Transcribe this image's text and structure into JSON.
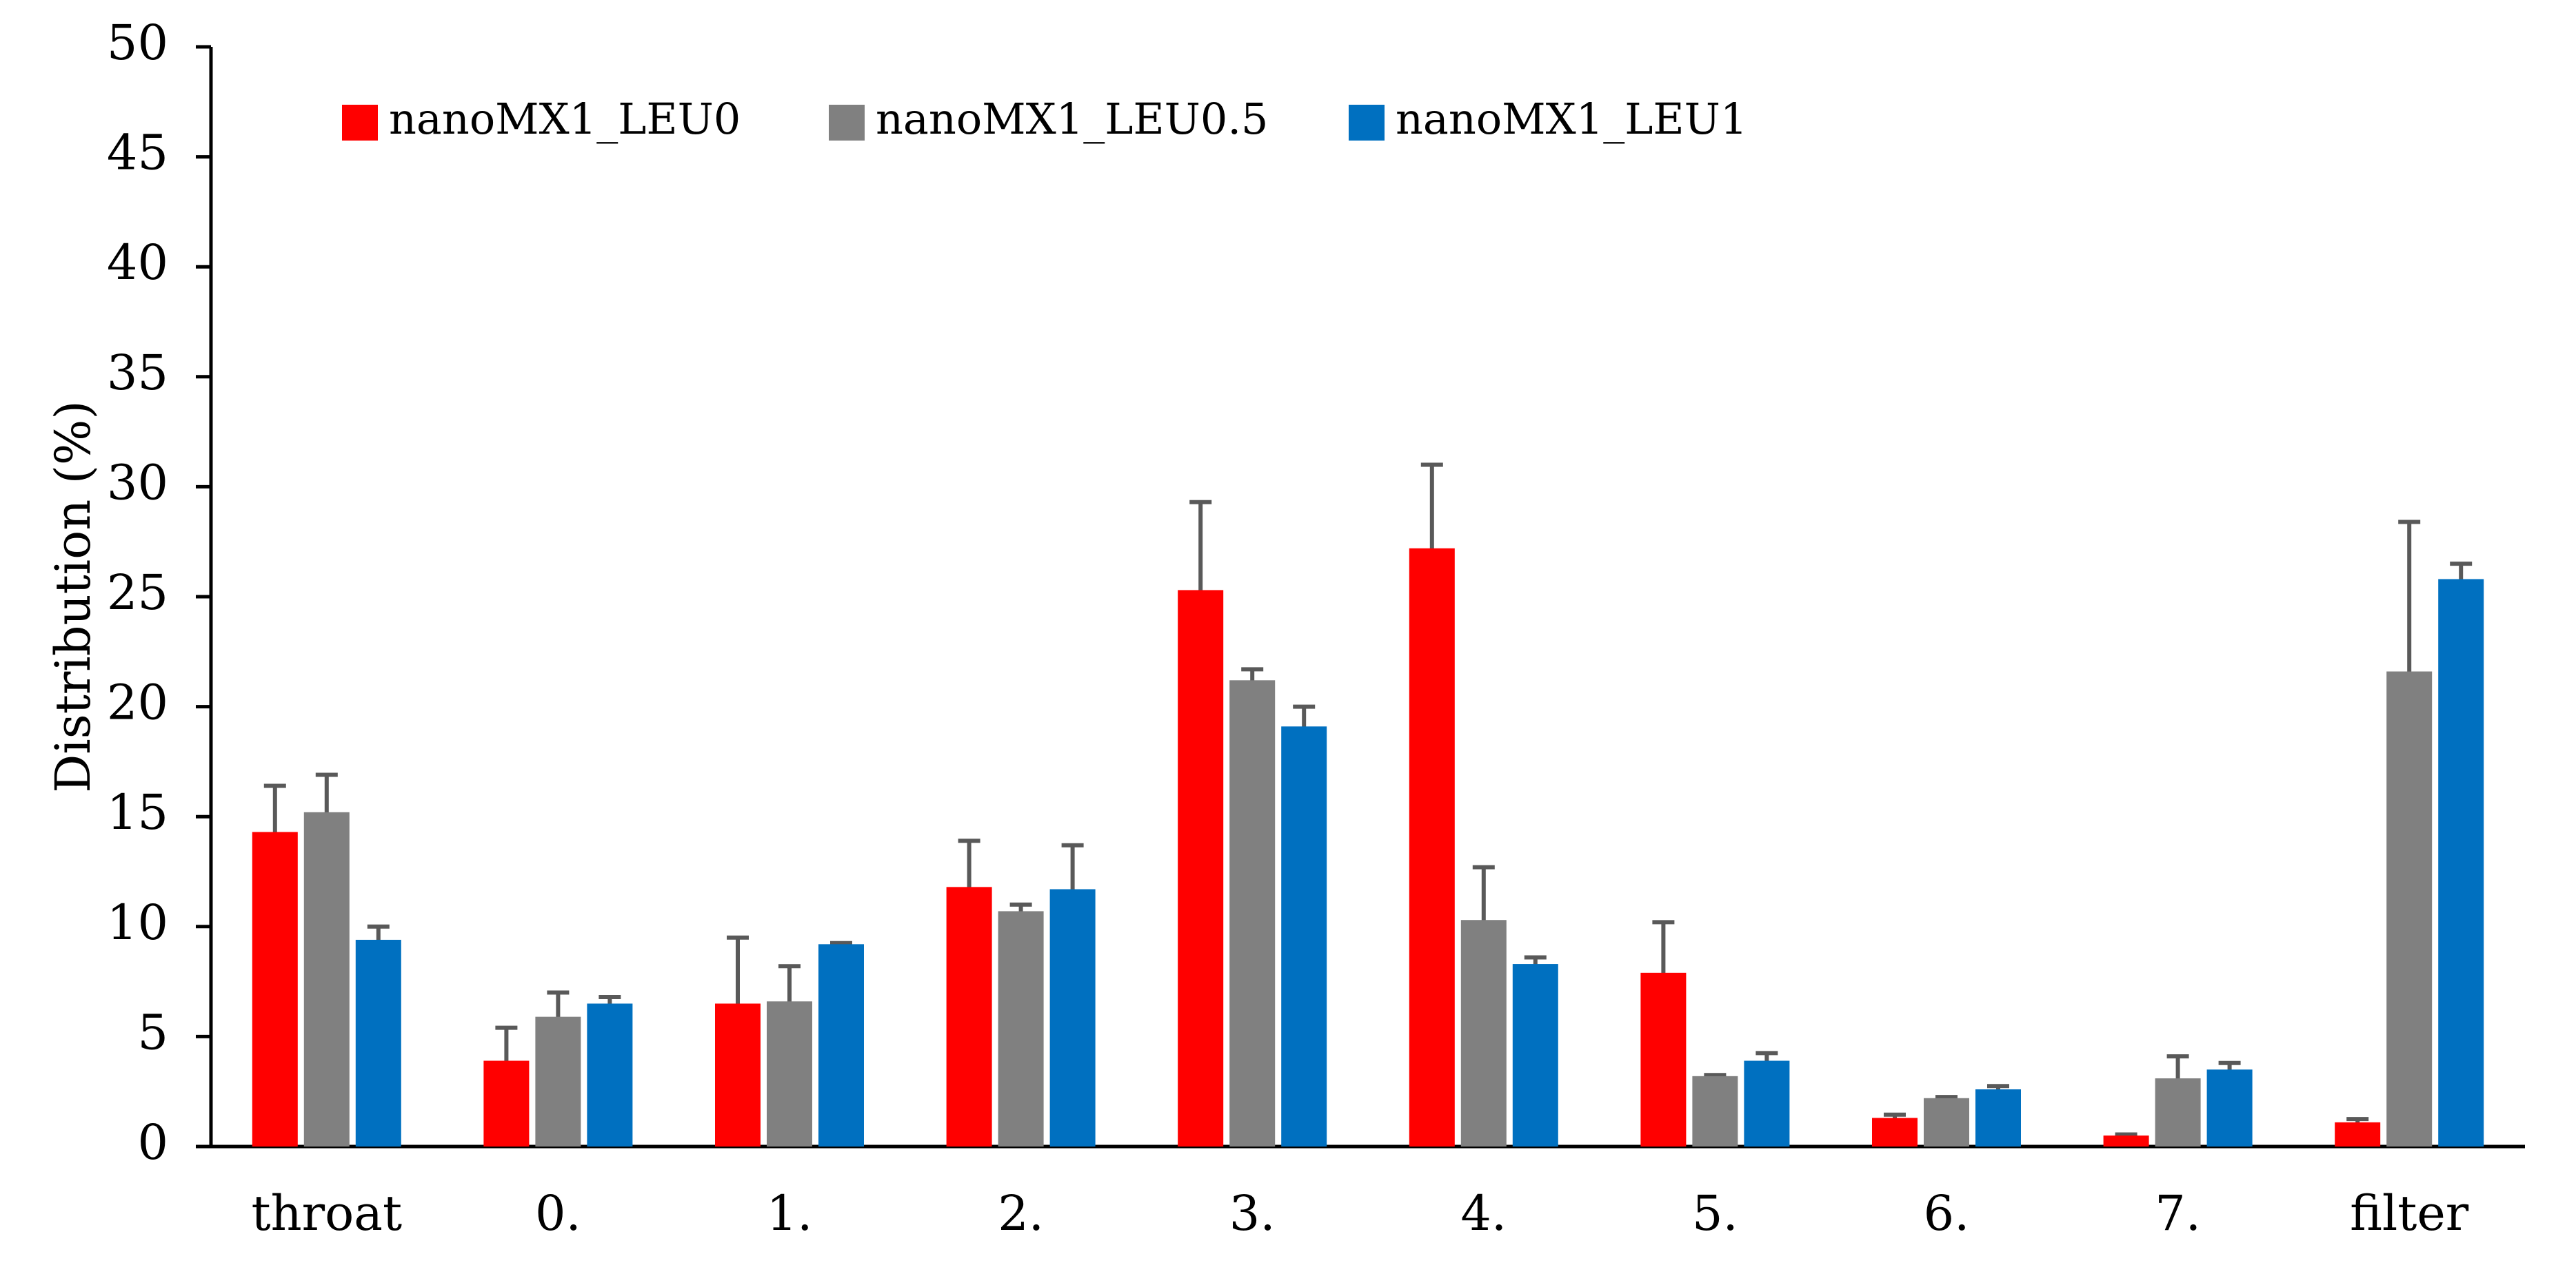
{
  "chart_data": {
    "type": "bar",
    "ylabel": "Distribution (%)",
    "xlabel": "",
    "ylim": [
      0,
      50
    ],
    "yticks": [
      0,
      5,
      10,
      15,
      20,
      25,
      30,
      35,
      40,
      45,
      50
    ],
    "grid": false,
    "legend_position": "top-left",
    "categories": [
      "throat",
      "0.",
      "1.",
      "2.",
      "3.",
      "4.",
      "5.",
      "6.",
      "7.",
      "filter"
    ],
    "series": [
      {
        "name": "nanoMX1_LEU0",
        "color": "#ff0000",
        "values": [
          14.3,
          3.9,
          6.5,
          11.8,
          25.3,
          27.2,
          7.9,
          1.3,
          0.5,
          1.1
        ],
        "errors": [
          2.1,
          1.5,
          3.0,
          2.1,
          4.0,
          3.8,
          2.3,
          0.15,
          0.05,
          0.15
        ]
      },
      {
        "name": "nanoMX1_LEU0.5",
        "color": "#808080",
        "values": [
          15.2,
          5.9,
          6.6,
          10.7,
          21.2,
          10.3,
          3.2,
          2.2,
          3.1,
          21.6
        ],
        "errors": [
          1.7,
          1.1,
          1.6,
          0.3,
          0.5,
          2.4,
          0.05,
          0.05,
          1.0,
          6.8
        ]
      },
      {
        "name": "nanoMX1_LEU1",
        "color": "#0070c0",
        "values": [
          9.4,
          6.5,
          9.2,
          11.7,
          19.1,
          8.3,
          3.9,
          2.6,
          3.5,
          25.8
        ],
        "errors": [
          0.6,
          0.3,
          0.05,
          2.0,
          0.9,
          0.3,
          0.35,
          0.15,
          0.3,
          0.7
        ]
      }
    ]
  }
}
